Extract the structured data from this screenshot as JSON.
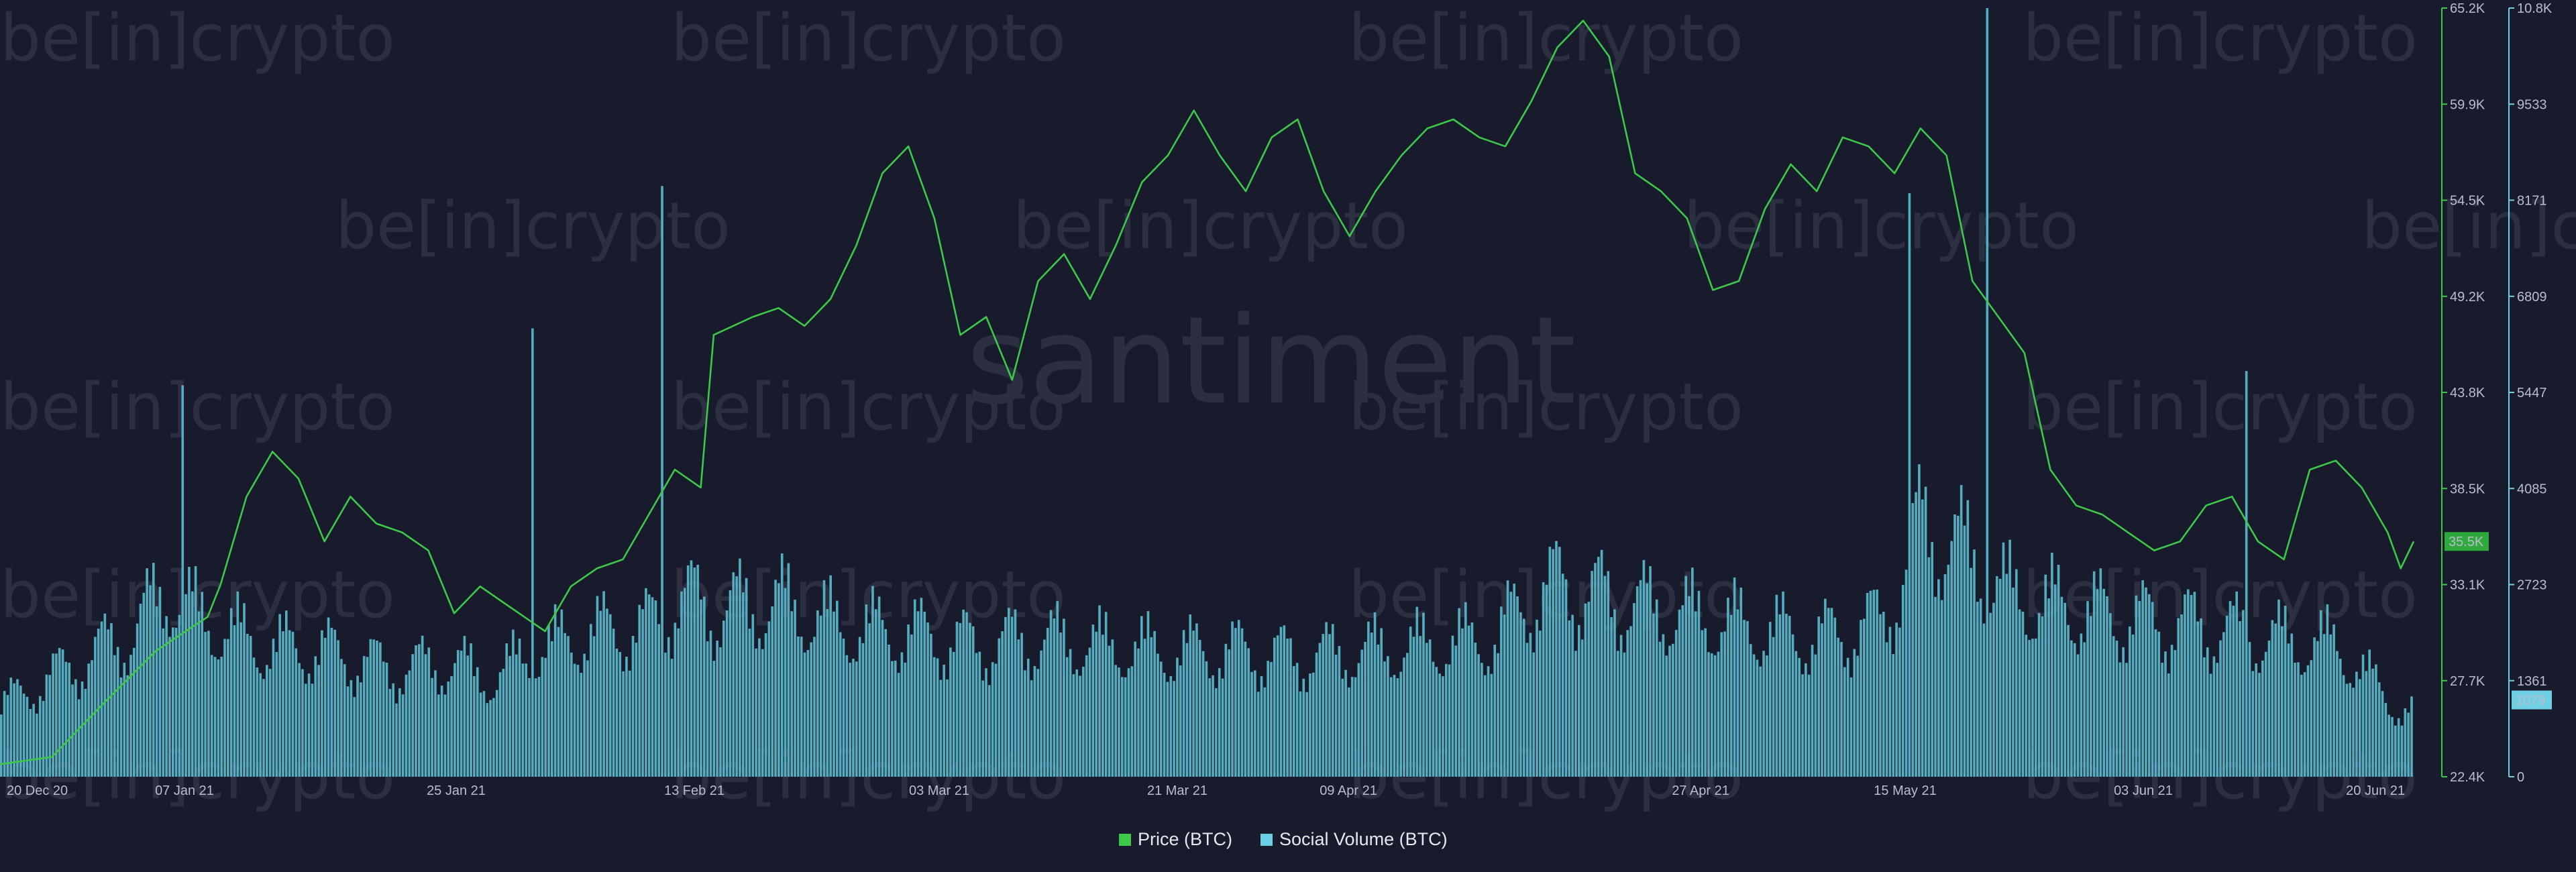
{
  "chart_data": {
    "type": "bar+line",
    "x_dates": [
      "20 Dec 20",
      "07 Jan 21",
      "25 Jan 21",
      "13 Feb 21",
      "03 Mar 21",
      "21 Mar 21",
      "09 Apr 21",
      "27 Apr 21",
      "15 May 21",
      "03 Jun 21",
      "20 Jun 21"
    ],
    "price_ticks": [
      "65.2K",
      "59.9K",
      "54.5K",
      "49.2K",
      "43.8K",
      "38.5K",
      "33.1K",
      "27.7K",
      "22.4K"
    ],
    "volume_ticks": [
      "10.8K",
      "9533",
      "8171",
      "6809",
      "5447",
      "4085",
      "2723",
      "1361",
      "0"
    ],
    "price_ylim": [
      22.4,
      65.2
    ],
    "volume_ylim": [
      0,
      10800
    ],
    "price_last_label": "35.5K",
    "volume_last_label": "1079",
    "series": [
      {
        "name": "Price (BTC)",
        "kind": "line",
        "unit": "K USD",
        "color": "#3ec84a",
        "points": [
          [
            0,
            23.1
          ],
          [
            4,
            23.5
          ],
          [
            8,
            26.5
          ],
          [
            12,
            29.4
          ],
          [
            16,
            31.3
          ],
          [
            17,
            33.1
          ],
          [
            19,
            38.0
          ],
          [
            21,
            40.5
          ],
          [
            23,
            39.0
          ],
          [
            25,
            35.5
          ],
          [
            27,
            38.0
          ],
          [
            29,
            36.5
          ],
          [
            31,
            36.0
          ],
          [
            33,
            35.0
          ],
          [
            35,
            31.5
          ],
          [
            37,
            33.0
          ],
          [
            39,
            32.0
          ],
          [
            40,
            31.5
          ],
          [
            42,
            30.5
          ],
          [
            44,
            33.0
          ],
          [
            46,
            34.0
          ],
          [
            48,
            34.5
          ],
          [
            50,
            37.0
          ],
          [
            52,
            39.5
          ],
          [
            54,
            38.5
          ],
          [
            55,
            47.0
          ],
          [
            58,
            48.0
          ],
          [
            60,
            48.5
          ],
          [
            62,
            47.5
          ],
          [
            64,
            49.0
          ],
          [
            66,
            52.0
          ],
          [
            68,
            56.0
          ],
          [
            70,
            57.5
          ],
          [
            72,
            53.5
          ],
          [
            74,
            47.0
          ],
          [
            76,
            48.0
          ],
          [
            78,
            44.5
          ],
          [
            80,
            50.0
          ],
          [
            82,
            51.5
          ],
          [
            84,
            49.0
          ],
          [
            86,
            52.0
          ],
          [
            88,
            55.5
          ],
          [
            90,
            57.0
          ],
          [
            92,
            59.5
          ],
          [
            94,
            57.0
          ],
          [
            96,
            55.0
          ],
          [
            98,
            58.0
          ],
          [
            100,
            59.0
          ],
          [
            102,
            55.0
          ],
          [
            104,
            52.5
          ],
          [
            106,
            55.0
          ],
          [
            108,
            57.0
          ],
          [
            110,
            58.5
          ],
          [
            112,
            59.0
          ],
          [
            114,
            58.0
          ],
          [
            116,
            57.5
          ],
          [
            118,
            60.0
          ],
          [
            120,
            63.0
          ],
          [
            122,
            64.5
          ],
          [
            124,
            62.5
          ],
          [
            126,
            56.0
          ],
          [
            128,
            55.0
          ],
          [
            130,
            53.5
          ],
          [
            132,
            49.5
          ],
          [
            134,
            50.0
          ],
          [
            136,
            54.0
          ],
          [
            138,
            56.5
          ],
          [
            140,
            55.0
          ],
          [
            142,
            58.0
          ],
          [
            144,
            57.5
          ],
          [
            146,
            56.0
          ],
          [
            148,
            58.5
          ],
          [
            150,
            57.0
          ],
          [
            152,
            50.0
          ],
          [
            154,
            48.0
          ],
          [
            156,
            46.0
          ],
          [
            158,
            39.5
          ],
          [
            160,
            37.5
          ],
          [
            162,
            37.0
          ],
          [
            164,
            36.0
          ],
          [
            166,
            35.0
          ],
          [
            168,
            35.5
          ],
          [
            170,
            37.5
          ],
          [
            172,
            38.0
          ],
          [
            174,
            35.5
          ],
          [
            176,
            34.5
          ],
          [
            178,
            39.5
          ],
          [
            180,
            40.0
          ],
          [
            182,
            38.5
          ],
          [
            184,
            36.0
          ],
          [
            185,
            34.0
          ],
          [
            186,
            35.5
          ]
        ]
      },
      {
        "name": "Social Volume (BTC)",
        "kind": "bar",
        "unit": "mentions",
        "color": "#5ab8cc",
        "points": [
          [
            0,
            1200
          ],
          [
            5,
            1800
          ],
          [
            10,
            2400
          ],
          [
            13,
            3200
          ],
          [
            15,
            2700
          ],
          [
            20,
            2200
          ],
          [
            25,
            2100
          ],
          [
            30,
            1800
          ],
          [
            35,
            1900
          ],
          [
            38,
            1600
          ],
          [
            40,
            2000
          ],
          [
            45,
            2400
          ],
          [
            50,
            2500
          ],
          [
            52,
            3000
          ],
          [
            55,
            2800
          ],
          [
            60,
            2900
          ],
          [
            65,
            2500
          ],
          [
            70,
            2400
          ],
          [
            75,
            2200
          ],
          [
            80,
            2300
          ],
          [
            85,
            2200
          ],
          [
            90,
            2100
          ],
          [
            95,
            2100
          ],
          [
            100,
            2000
          ],
          [
            105,
            2100
          ],
          [
            110,
            2200
          ],
          [
            115,
            2300
          ],
          [
            118,
            3000
          ],
          [
            120,
            3200
          ],
          [
            125,
            2900
          ],
          [
            130,
            2700
          ],
          [
            135,
            2500
          ],
          [
            140,
            2300
          ],
          [
            145,
            2600
          ],
          [
            148,
            4200
          ],
          [
            150,
            4000
          ],
          [
            152,
            3600
          ],
          [
            155,
            3000
          ],
          [
            160,
            2800
          ],
          [
            165,
            2600
          ],
          [
            170,
            2500
          ],
          [
            175,
            2300
          ],
          [
            180,
            2200
          ],
          [
            185,
            1079
          ]
        ]
      }
    ],
    "volume_spikes": [
      [
        14,
        5500
      ],
      [
        41,
        6300
      ],
      [
        51,
        8300
      ],
      [
        147,
        8200
      ],
      [
        153,
        10800
      ],
      [
        173,
        5700
      ]
    ],
    "grid": false,
    "legend_position": "bottom-center",
    "watermark_logo": "be[in]crypto",
    "watermark_brand": "santiment"
  },
  "legend": [
    {
      "label": "Price (BTC)",
      "color": "#3ec84a"
    },
    {
      "label": "Social Volume (BTC)",
      "color": "#6fcfe3"
    }
  ]
}
